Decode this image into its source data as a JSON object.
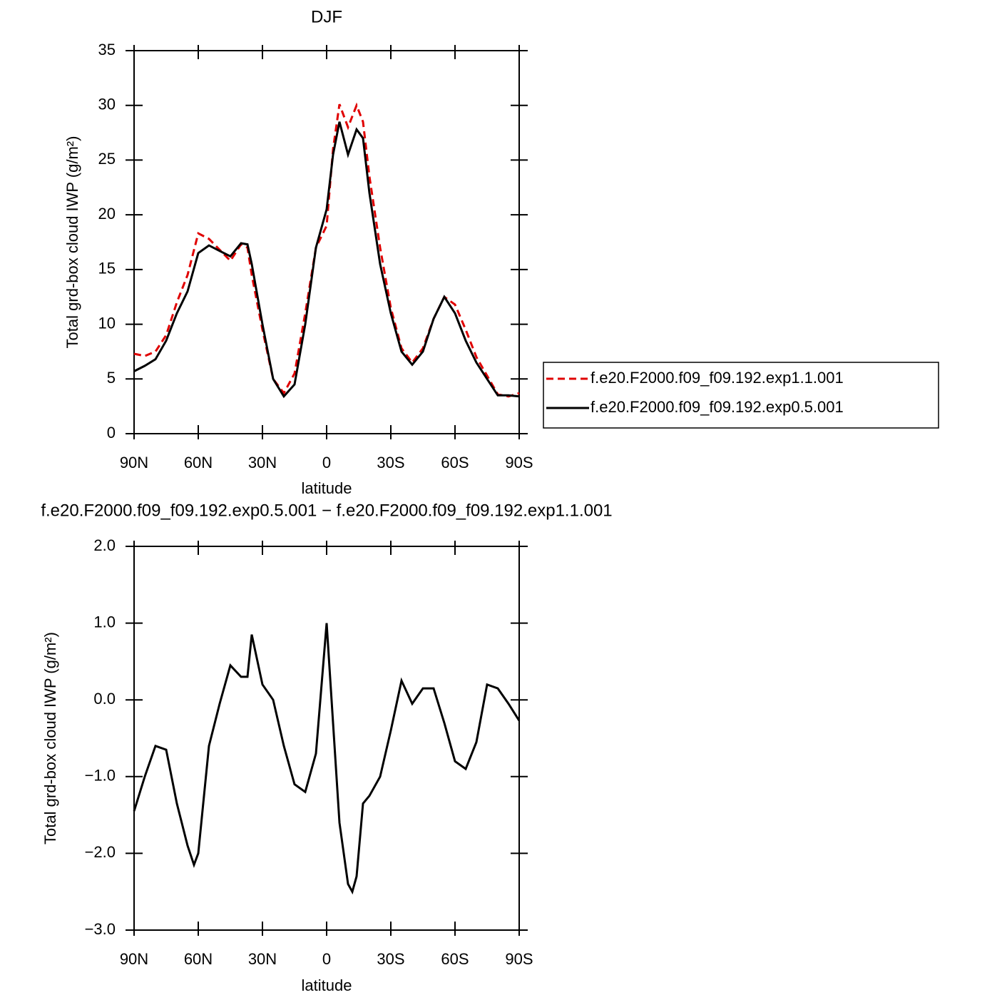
{
  "chart_data": [
    {
      "type": "line",
      "title": "DJF",
      "xlabel": "latitude",
      "ylabel": "Total grd-box cloud IWP (g/m²)",
      "x": [
        90,
        85,
        80,
        75,
        70,
        65,
        60,
        55,
        50,
        45,
        40,
        37,
        35,
        30,
        25,
        20,
        15,
        10,
        5,
        0,
        -3,
        -6,
        -10,
        -14,
        -17,
        -20,
        -25,
        -30,
        -35,
        -40,
        -45,
        -50,
        -55,
        -60,
        -65,
        -70,
        -75,
        -80,
        -85,
        -90
      ],
      "series": [
        {
          "name": "f.e20.F2000.f09_f09.192.exp1.1.001",
          "color": "#e00000",
          "linestyle": "dashed",
          "values": [
            7.3,
            7.1,
            7.5,
            9.0,
            12.0,
            14.5,
            18.3,
            17.8,
            16.8,
            15.8,
            17.3,
            17.0,
            14.5,
            9.5,
            5.0,
            3.7,
            5.5,
            11.0,
            17.0,
            19.0,
            26.0,
            30.1,
            28.0,
            30.0,
            28.5,
            23.5,
            17.0,
            11.5,
            7.8,
            6.5,
            7.8,
            10.5,
            12.5,
            11.8,
            9.5,
            7.0,
            5.3,
            3.6,
            3.4,
            3.7
          ]
        },
        {
          "name": "f.e20.F2000.f09_f09.192.exp0.5.001",
          "color": "#000000",
          "linestyle": "solid",
          "values": [
            5.7,
            6.2,
            6.8,
            8.5,
            11.0,
            13.0,
            16.5,
            17.2,
            16.7,
            16.2,
            17.4,
            17.3,
            15.5,
            10.0,
            5.0,
            3.4,
            4.5,
            10.0,
            17.0,
            20.5,
            25.5,
            28.5,
            25.5,
            27.8,
            27.0,
            22.0,
            15.5,
            11.0,
            7.5,
            6.3,
            7.5,
            10.5,
            12.5,
            11.0,
            8.5,
            6.5,
            5.0,
            3.5,
            3.5,
            3.4
          ]
        }
      ],
      "xlim": [
        90,
        -90
      ],
      "xticks": [
        {
          "value": 90,
          "label": "90N"
        },
        {
          "value": 60,
          "label": "60N"
        },
        {
          "value": 30,
          "label": "30N"
        },
        0,
        {
          "value": -30,
          "label": "30S"
        },
        {
          "value": -60,
          "label": "60S"
        },
        {
          "value": -90,
          "label": "90S"
        }
      ],
      "ylim": [
        0,
        35
      ],
      "yticks": [
        0,
        5,
        10,
        15,
        20,
        25,
        30,
        35
      ],
      "legend": "right"
    },
    {
      "type": "line",
      "title": "f.e20.F2000.f09_f09.192.exp0.5.001 − f.e20.F2000.f09_f09.192.exp1.1.001",
      "xlabel": "latitude",
      "ylabel": "Total grd-box cloud IWP (g/m²)",
      "x": [
        90,
        85,
        80,
        75,
        70,
        65,
        62,
        60,
        55,
        50,
        45,
        40,
        37,
        35,
        30,
        25,
        20,
        15,
        10,
        5,
        0,
        -3,
        -6,
        -10,
        -12,
        -14,
        -17,
        -20,
        -25,
        -30,
        -35,
        -40,
        -45,
        -50,
        -55,
        -60,
        -65,
        -70,
        -75,
        -80,
        -85,
        -90
      ],
      "series": [
        {
          "color": "#000000",
          "linestyle": "solid",
          "values": [
            -1.45,
            -1.0,
            -0.6,
            -0.65,
            -1.35,
            -1.9,
            -2.15,
            -2.0,
            -0.6,
            -0.05,
            0.45,
            0.3,
            0.3,
            0.85,
            0.2,
            0.0,
            -0.6,
            -1.1,
            -1.2,
            -0.7,
            1.0,
            -0.3,
            -1.6,
            -2.4,
            -2.5,
            -2.3,
            -1.35,
            -1.25,
            -1.0,
            -0.4,
            0.25,
            -0.05,
            0.15,
            0.15,
            -0.3,
            -0.8,
            -0.9,
            -0.55,
            0.2,
            0.15,
            -0.05,
            -0.27
          ]
        }
      ],
      "xlim": [
        90,
        -90
      ],
      "xticks": [
        {
          "value": 90,
          "label": "90N"
        },
        {
          "value": 60,
          "label": "60N"
        },
        {
          "value": 30,
          "label": "30N"
        },
        0,
        {
          "value": -30,
          "label": "30S"
        },
        {
          "value": -60,
          "label": "60S"
        },
        {
          "value": -90,
          "label": "90S"
        }
      ],
      "ylim": [
        -3,
        2
      ],
      "yticks": [
        {
          "value": -3,
          "label": "−3.0"
        },
        {
          "value": -2,
          "label": "−2.0"
        },
        {
          "value": -1,
          "label": "−1.0"
        },
        {
          "value": 0,
          "label": "0.0"
        },
        {
          "value": 1,
          "label": "1.0"
        },
        {
          "value": 2,
          "label": "2.0"
        }
      ]
    }
  ]
}
